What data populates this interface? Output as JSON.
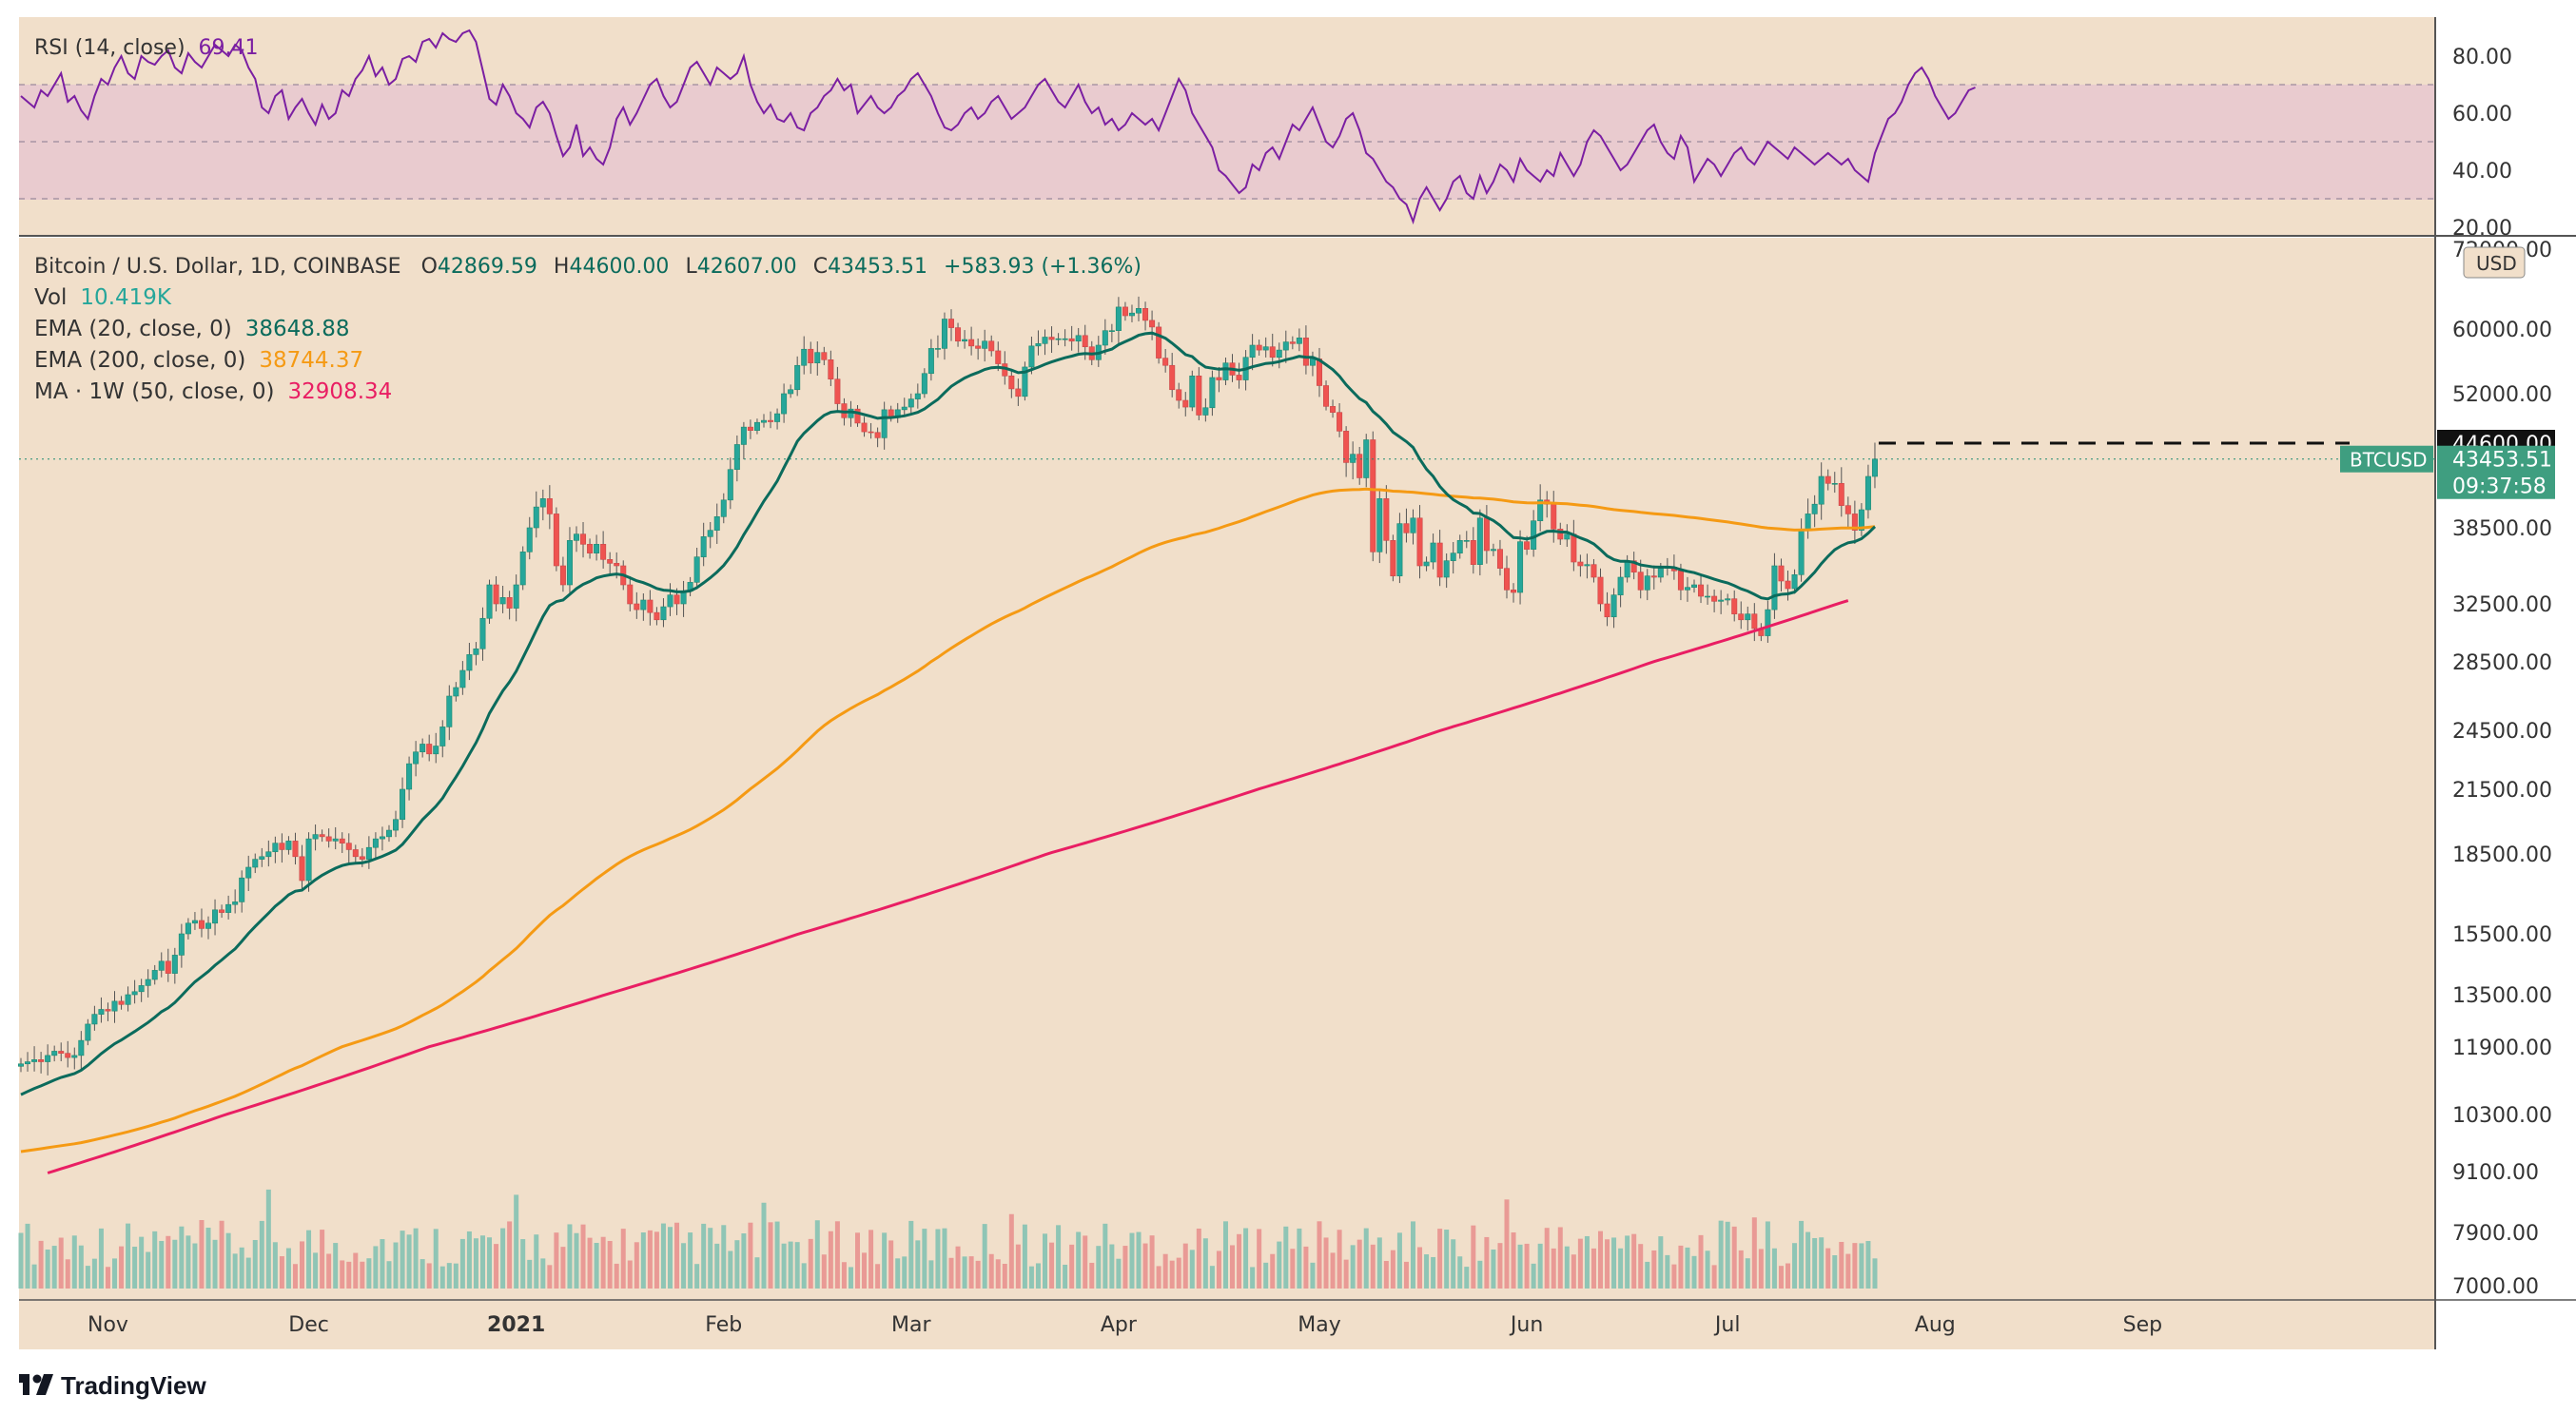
{
  "chart_data": {
    "type": "candlestick",
    "title": "Bitcoin / U.S. Dollar, 1D, COINBASE",
    "ohlc": {
      "o_label": "O",
      "o": "42869.59",
      "h_label": "H",
      "h": "44600.00",
      "l_label": "L",
      "l": "42607.00",
      "c_label": "C",
      "c": "43453.51",
      "change": "+583.93 (+1.36%)"
    },
    "indicators": [
      {
        "label": "Vol",
        "value": "10.419K",
        "color": "#26a69a"
      },
      {
        "label": "EMA (20, close, 0)",
        "value": "38648.88",
        "color": "#0b6b5c"
      },
      {
        "label": "EMA (200, close, 0)",
        "value": "38744.37",
        "color": "#f59a14"
      },
      {
        "label": "MA · 1W (50, close, 0)",
        "value": "32908.34",
        "color": "#e91e63"
      }
    ],
    "rsi": {
      "label": "RSI (14, close)",
      "value": "69.41",
      "ticks": [
        "80.00",
        "60.00",
        "40.00",
        "20.00"
      ],
      "levels": [
        70,
        50,
        30
      ],
      "ylim": [
        20,
        90
      ],
      "values": [
        66,
        64,
        62,
        68,
        66,
        70,
        74,
        64,
        66,
        61,
        58,
        66,
        72,
        70,
        76,
        80,
        74,
        72,
        80,
        78,
        77,
        80,
        82,
        76,
        74,
        81,
        78,
        76,
        80,
        84,
        82,
        80,
        84,
        82,
        76,
        72,
        62,
        60,
        66,
        68,
        58,
        62,
        65,
        60,
        56,
        63,
        58,
        60,
        68,
        66,
        72,
        75,
        80,
        73,
        76,
        70,
        72,
        79,
        80,
        78,
        85,
        86,
        83,
        88,
        86,
        85,
        88,
        89,
        85,
        75,
        65,
        63,
        70,
        66,
        60,
        58,
        55,
        62,
        64,
        60,
        52,
        45,
        48,
        56,
        45,
        48,
        44,
        42,
        48,
        58,
        62,
        56,
        60,
        65,
        70,
        72,
        66,
        62,
        64,
        70,
        76,
        78,
        74,
        70,
        76,
        74,
        72,
        74,
        80,
        70,
        64,
        60,
        63,
        58,
        57,
        60,
        55,
        54,
        60,
        62,
        66,
        68,
        72,
        68,
        70,
        60,
        63,
        66,
        62,
        60,
        62,
        66,
        68,
        72,
        74,
        70,
        66,
        60,
        55,
        54,
        56,
        60,
        62,
        58,
        60,
        64,
        66,
        62,
        58,
        60,
        62,
        66,
        70,
        72,
        68,
        64,
        62,
        66,
        70,
        64,
        60,
        62,
        56,
        58,
        54,
        56,
        60,
        58,
        56,
        58,
        54,
        60,
        66,
        72,
        68,
        60,
        56,
        52,
        48,
        40,
        38,
        35,
        32,
        34,
        42,
        40,
        46,
        48,
        44,
        50,
        56,
        54,
        58,
        62,
        56,
        50,
        48,
        52,
        58,
        60,
        54,
        46,
        44,
        40,
        36,
        34,
        30,
        28,
        22,
        30,
        34,
        30,
        26,
        30,
        36,
        38,
        32,
        30,
        38,
        32,
        36,
        42,
        40,
        36,
        44,
        40,
        38,
        36,
        40,
        38,
        46,
        42,
        38,
        42,
        50,
        54,
        52,
        48,
        44,
        40,
        42,
        46,
        50,
        54,
        56,
        50,
        46,
        44,
        52,
        48,
        36,
        40,
        44,
        42,
        38,
        42,
        46,
        48,
        44,
        42,
        46,
        50,
        48,
        46,
        44,
        48,
        46,
        44,
        42,
        44,
        46,
        44,
        42,
        44,
        40,
        38,
        36,
        46,
        52,
        58,
        60,
        64,
        70,
        74,
        76,
        72,
        66,
        62,
        58,
        60,
        64,
        68,
        69
      ]
    },
    "price_ticks": [
      "72000.00",
      "60000.00",
      "52000.00",
      "38500.00",
      "32500.00",
      "28500.00",
      "24500.00",
      "21500.00",
      "18500.00",
      "15500.00",
      "13500.00",
      "11900.00",
      "10300.00",
      "9100.00",
      "7900.00",
      "7000.00"
    ],
    "price_ylim": [
      7000,
      72000
    ],
    "currency": "USD",
    "high_tag": "44600.00",
    "symbol_tag": "BTCUSD",
    "last_price": "43453.51",
    "countdown": "09:37:58",
    "x_ticks": [
      {
        "label": "Nov",
        "index": 13
      },
      {
        "label": "Dec",
        "index": 43
      },
      {
        "label": "2021",
        "index": 74
      },
      {
        "label": "Feb",
        "index": 105
      },
      {
        "label": "Mar",
        "index": 133
      },
      {
        "label": "Apr",
        "index": 164
      },
      {
        "label": "May",
        "index": 194
      },
      {
        "label": "Jun",
        "index": 225
      },
      {
        "label": "Jul",
        "index": 255
      },
      {
        "label": "Aug",
        "index": 286
      },
      {
        "label": "Sep",
        "index": 317
      }
    ],
    "closes": [
      11500,
      11550,
      11600,
      11550,
      11700,
      11800,
      11750,
      11650,
      11700,
      12100,
      12600,
      12900,
      13050,
      13000,
      13300,
      13200,
      13500,
      13600,
      13800,
      14000,
      14300,
      14600,
      14200,
      14800,
      15500,
      15900,
      16000,
      15700,
      15900,
      16400,
      16300,
      16600,
      16700,
      17600,
      18000,
      18300,
      18400,
      18600,
      19000,
      18700,
      19100,
      18400,
      17500,
      19200,
      19400,
      19300,
      19100,
      19200,
      19000,
      18700,
      18400,
      18300,
      18800,
      19200,
      19300,
      19600,
      20100,
      21500,
      22800,
      23400,
      23800,
      23300,
      23700,
      24700,
      26500,
      27000,
      28000,
      29000,
      29400,
      31500,
      34000,
      32500,
      33000,
      32200,
      34000,
      36600,
      38500,
      40000,
      40600,
      39500,
      35500,
      34000,
      37500,
      38000,
      37200,
      36500,
      37200,
      36000,
      35700,
      35500,
      34000,
      32500,
      32100,
      32800,
      31900,
      31400,
      32300,
      33200,
      32500,
      33500,
      34200,
      36200,
      37800,
      38300,
      39300,
      40500,
      42700,
      44500,
      47000,
      46500,
      47700,
      48000,
      47800,
      49000,
      52000,
      52500,
      55500,
      57500,
      55800,
      57100,
      56200,
      53800,
      50500,
      48400,
      49700,
      47600,
      46300,
      46200,
      45400,
      49600,
      48400,
      49600,
      50000,
      51200,
      52000,
      54500,
      57600,
      57600,
      61500,
      60200,
      58500,
      58700,
      57900,
      57600,
      58500,
      57300,
      55700,
      54200,
      52600,
      51600,
      55300,
      57900,
      58200,
      59000,
      58700,
      58800,
      58800,
      58500,
      59200,
      57800,
      56200,
      58000,
      59800,
      59800,
      63300,
      62000,
      62400,
      63100,
      61300,
      60300,
      56400,
      55500,
      52500,
      51000,
      50000,
      54200,
      48800,
      49900,
      54000,
      53700,
      55800,
      54300,
      53700,
      56500,
      58000,
      57400,
      57800,
      56500,
      57400,
      58400,
      58200,
      58900,
      55500,
      56300,
      53000,
      50100,
      49200,
      46400,
      43200,
      43800,
      42100,
      45100,
      36600,
      40600,
      37500,
      34700,
      38800,
      38100,
      39200,
      35500,
      35800,
      37300,
      34600,
      35900,
      36500,
      37500,
      37500,
      35600,
      39200,
      36700,
      36800,
      35300,
      33600,
      33400,
      37400,
      36800,
      39000,
      40500,
      40200,
      38400,
      37600,
      38000,
      35800,
      35500,
      35600,
      34600,
      32500,
      31600,
      33200,
      34600,
      35900,
      35000,
      33600,
      34700,
      34600,
      35300,
      35400,
      35100,
      33600,
      33800,
      34000,
      33100,
      33100,
      32700,
      32800,
      32900,
      31800,
      31400,
      31800,
      30800,
      30300,
      32100,
      35500,
      34300,
      33700,
      34800,
      38400,
      39500,
      40200,
      42200,
      41700,
      41700,
      40100,
      39500,
      38300,
      39800,
      42200,
      43453
    ]
  }
}
